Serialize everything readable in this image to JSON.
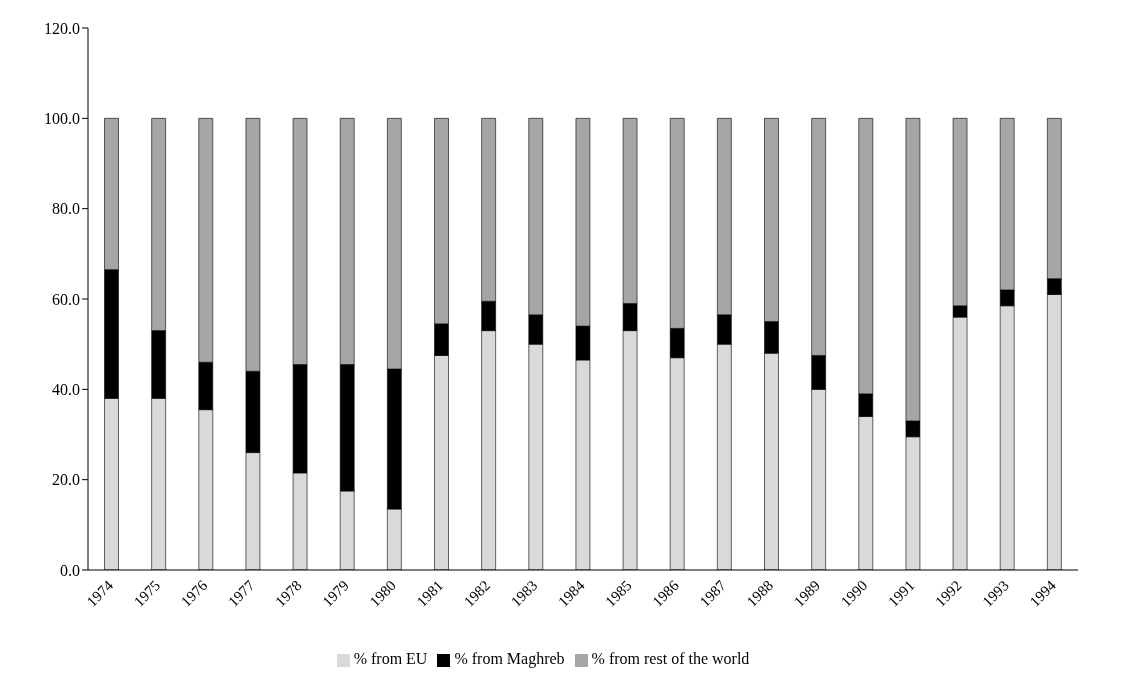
{
  "chart_data": {
    "type": "bar",
    "stacked": true,
    "categories": [
      "1974",
      "1975",
      "1976",
      "1977",
      "1978",
      "1979",
      "1980",
      "1981",
      "1982",
      "1983",
      "1984",
      "1985",
      "1986",
      "1987",
      "1988",
      "1989",
      "1990",
      "1991",
      "1992",
      "1993",
      "1994"
    ],
    "series": [
      {
        "name": "% from EU",
        "color": "#d9d9d9",
        "values": [
          38,
          38,
          35.5,
          26,
          21.5,
          17.5,
          13.5,
          47.5,
          53,
          50,
          46.5,
          53,
          47,
          50,
          48,
          40,
          34,
          29.5,
          56,
          58.5,
          61
        ]
      },
      {
        "name": "% from Maghreb",
        "color": "#000000",
        "values": [
          28.5,
          15,
          10.5,
          18,
          24,
          28,
          31,
          7,
          6.5,
          6.5,
          7.5,
          6,
          6.5,
          6.5,
          7,
          7.5,
          5,
          3.5,
          2.5,
          3.5,
          3.5
        ]
      },
      {
        "name": "% from rest of the world",
        "color": "#a6a6a6",
        "values": [
          33.5,
          47,
          54,
          56,
          54.5,
          54.5,
          55.5,
          45.5,
          40.5,
          43.5,
          46,
          41,
          46.5,
          43.5,
          45,
          52.5,
          61,
          67,
          41.5,
          38,
          35.5
        ]
      }
    ],
    "ylim": [
      0,
      120
    ],
    "yticks": [
      {
        "value": 0,
        "label": "0.0"
      },
      {
        "value": 20,
        "label": "20.0"
      },
      {
        "value": 40,
        "label": "40.0"
      },
      {
        "value": 60,
        "label": "60.0"
      },
      {
        "value": 80,
        "label": "80.0"
      },
      {
        "value": 100,
        "label": "100.0"
      },
      {
        "value": 120,
        "label": "120.0"
      }
    ],
    "grid": false,
    "legend": "bottom"
  }
}
